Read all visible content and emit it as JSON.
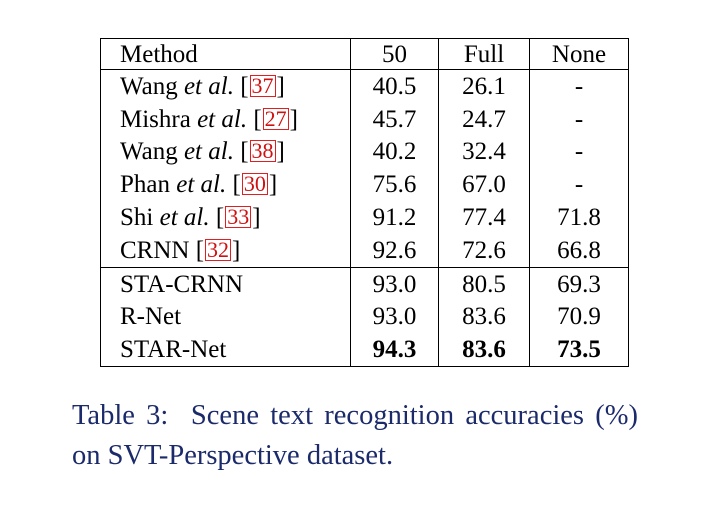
{
  "table": {
    "headers": [
      "Method",
      "50",
      "Full",
      "None"
    ],
    "groups": [
      [
        {
          "method": "Wang",
          "etal": "et al.",
          "cite": "37",
          "v50": "40.5",
          "full": "26.1",
          "none": "-"
        },
        {
          "method": "Mishra",
          "etal": "et al.",
          "cite": "27",
          "v50": "45.7",
          "full": "24.7",
          "none": "-"
        },
        {
          "method": "Wang",
          "etal": "et al.",
          "cite": "38",
          "v50": "40.2",
          "full": "32.4",
          "none": "-"
        },
        {
          "method": "Phan",
          "etal": "et al.",
          "cite": "30",
          "v50": "75.6",
          "full": "67.0",
          "none": "-"
        },
        {
          "method": "Shi",
          "etal": "et al.",
          "cite": "33",
          "v50": "91.2",
          "full": "77.4",
          "none": "71.8"
        },
        {
          "method": "CRNN",
          "etal": "",
          "cite": "32",
          "v50": "92.6",
          "full": "72.6",
          "none": "66.8"
        }
      ],
      [
        {
          "method": "STA-CRNN",
          "etal": "",
          "cite": "",
          "v50": "93.0",
          "full": "80.5",
          "none": "69.3"
        },
        {
          "method": "R-Net",
          "etal": "",
          "cite": "",
          "v50": "93.0",
          "full": "83.6",
          "none": "70.9"
        },
        {
          "method": "STAR-Net",
          "etal": "",
          "cite": "",
          "v50": "94.3",
          "full": "83.6",
          "none": "73.5",
          "bold_values": true
        }
      ]
    ]
  },
  "caption": {
    "label": "Table 3:",
    "text": "Scene text recognition accuracies (%) on SVT-Perspective dataset."
  }
}
